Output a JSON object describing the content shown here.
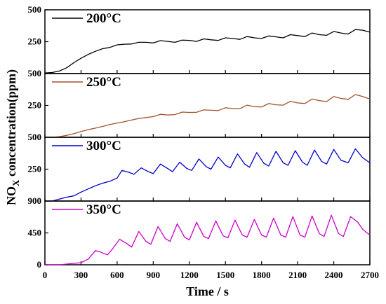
{
  "chart_data": {
    "type": "line",
    "xlabel": "Time / s",
    "ylabel": {
      "main": "NO",
      "sub": "X",
      "rest": " concentration(ppm)"
    },
    "xlim": [
      0,
      2700
    ],
    "x_ticks": [
      "0",
      "300",
      "600",
      "900",
      "1200",
      "1500",
      "1800",
      "2100",
      "2400",
      "2700"
    ],
    "panels": [
      {
        "name": "200°C",
        "color": "#000000",
        "ylim": [
          0,
          500
        ],
        "y_ticks": [
          "500",
          "250"
        ],
        "x": [
          0,
          60,
          120,
          180,
          240,
          300,
          360,
          420,
          480,
          540,
          600,
          660,
          720,
          780,
          840,
          900,
          960,
          1020,
          1080,
          1140,
          1200,
          1260,
          1320,
          1380,
          1440,
          1500,
          1560,
          1620,
          1680,
          1740,
          1800,
          1860,
          1920,
          1980,
          2040,
          2100,
          2160,
          2220,
          2280,
          2340,
          2400,
          2460,
          2520,
          2580,
          2640,
          2700
        ],
        "values": [
          5,
          8,
          20,
          45,
          85,
          120,
          150,
          175,
          195,
          205,
          225,
          230,
          232,
          245,
          245,
          240,
          258,
          252,
          245,
          262,
          260,
          252,
          272,
          265,
          260,
          280,
          275,
          268,
          290,
          280,
          275,
          295,
          288,
          280,
          305,
          298,
          290,
          318,
          305,
          300,
          330,
          318,
          310,
          345,
          340,
          325
        ]
      },
      {
        "name": "250°C",
        "color": "#a0522d",
        "ylim": [
          0,
          500
        ],
        "y_ticks": [
          "500",
          "250"
        ],
        "x": [
          0,
          60,
          120,
          180,
          240,
          300,
          360,
          420,
          480,
          540,
          600,
          660,
          720,
          780,
          840,
          900,
          960,
          1020,
          1080,
          1140,
          1200,
          1260,
          1320,
          1380,
          1440,
          1500,
          1560,
          1620,
          1680,
          1740,
          1800,
          1860,
          1920,
          1980,
          2040,
          2100,
          2160,
          2220,
          2280,
          2340,
          2400,
          2460,
          2520,
          2580,
          2640,
          2700
        ],
        "values": [
          0,
          0,
          5,
          15,
          28,
          45,
          60,
          72,
          85,
          100,
          112,
          122,
          135,
          148,
          155,
          162,
          180,
          175,
          178,
          198,
          195,
          196,
          215,
          212,
          210,
          232,
          225,
          224,
          252,
          240,
          238,
          265,
          255,
          252,
          282,
          270,
          265,
          300,
          288,
          280,
          320,
          305,
          298,
          335,
          320,
          300
        ]
      },
      {
        "name": "300°C",
        "color": "#0000cc",
        "ylim": [
          0,
          500
        ],
        "y_ticks": [
          "500",
          "250"
        ],
        "x": [
          0,
          60,
          120,
          180,
          240,
          300,
          360,
          420,
          480,
          540,
          600,
          640,
          700,
          740,
          800,
          860,
          900,
          960,
          1020,
          1060,
          1120,
          1180,
          1220,
          1280,
          1340,
          1380,
          1440,
          1500,
          1540,
          1600,
          1660,
          1700,
          1760,
          1820,
          1860,
          1920,
          1980,
          2020,
          2080,
          2140,
          2180,
          2240,
          2300,
          2340,
          2400,
          2460,
          2520,
          2580,
          2640,
          2700
        ],
        "values": [
          0,
          0,
          15,
          30,
          40,
          70,
          95,
          120,
          140,
          155,
          180,
          240,
          225,
          210,
          260,
          230,
          215,
          290,
          255,
          230,
          305,
          255,
          240,
          330,
          270,
          250,
          345,
          280,
          260,
          370,
          290,
          265,
          380,
          295,
          275,
          390,
          300,
          280,
          395,
          305,
          280,
          400,
          310,
          290,
          405,
          320,
          300,
          410,
          340,
          300
        ]
      },
      {
        "name": "350°C",
        "color": "#cc00cc",
        "ylim": [
          0,
          900
        ],
        "y_ticks": [
          "900",
          "450",
          "0"
        ],
        "x": [
          0,
          60,
          120,
          180,
          240,
          300,
          360,
          420,
          460,
          520,
          560,
          620,
          680,
          720,
          780,
          840,
          880,
          940,
          1000,
          1040,
          1100,
          1160,
          1200,
          1260,
          1320,
          1360,
          1420,
          1480,
          1520,
          1580,
          1640,
          1680,
          1740,
          1800,
          1840,
          1900,
          1960,
          2000,
          2060,
          2120,
          2160,
          2220,
          2280,
          2320,
          2380,
          2440,
          2480,
          2540,
          2600,
          2640,
          2700
        ],
        "values": [
          0,
          0,
          0,
          10,
          20,
          30,
          80,
          200,
          180,
          140,
          220,
          360,
          300,
          250,
          470,
          330,
          290,
          540,
          370,
          330,
          580,
          390,
          350,
          600,
          400,
          370,
          620,
          410,
          380,
          630,
          420,
          390,
          640,
          420,
          390,
          660,
          420,
          390,
          680,
          420,
          390,
          690,
          440,
          400,
          700,
          440,
          400,
          680,
          600,
          500,
          420
        ]
      }
    ]
  }
}
